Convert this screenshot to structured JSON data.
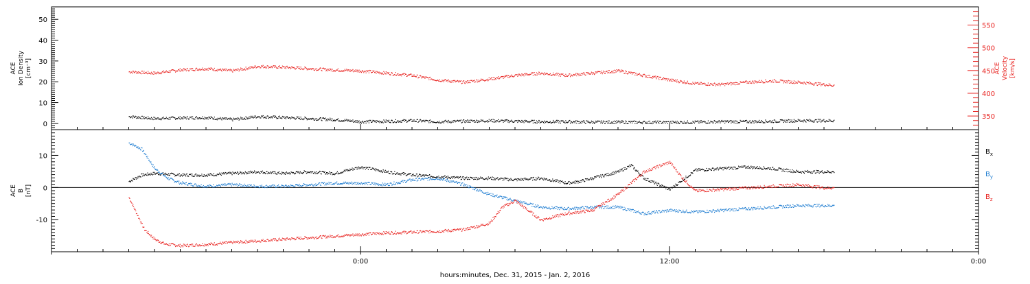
{
  "chart_data": [
    {
      "type": "scatter",
      "panel": "top",
      "ylabel_lines": [
        "ACE",
        "Ion Density",
        "[cm⁻³]"
      ],
      "ylim": [
        -3,
        56
      ],
      "yticks": [
        0,
        10,
        20,
        30,
        40,
        50
      ],
      "y2label_lines": [
        "ACE",
        "Velocity",
        "[km/s]"
      ],
      "y2lim": [
        320,
        590
      ],
      "y2ticks": [
        350,
        400,
        450,
        500,
        550
      ],
      "y2_color": "#e8221f",
      "series": [
        {
          "color": "#000000",
          "axis": "left",
          "x": [
            -9.0,
            -8.0,
            -7.0,
            -6.0,
            -5.0,
            -4.0,
            -3.0,
            -2.0,
            -1.0,
            0.0,
            1.0,
            2.0,
            3.0,
            4.0,
            5.0,
            6.0,
            7.0,
            8.0,
            9.0,
            10.0,
            11.0,
            12.0,
            13.0,
            14.0,
            15.0,
            16.0,
            17.0,
            18.0,
            18.4
          ],
          "y": [
            3.5,
            2.5,
            2.8,
            3.0,
            2.0,
            3.5,
            3.0,
            2.5,
            2.0,
            1.0,
            1.2,
            1.5,
            1.0,
            1.2,
            1.5,
            1.2,
            1.0,
            1.0,
            0.8,
            0.8,
            0.7,
            0.7,
            0.8,
            1.0,
            1.0,
            1.2,
            1.5,
            1.5,
            1.5
          ]
        },
        {
          "color": "#e8221f",
          "axis": "right",
          "x": [
            -9.0,
            -8.0,
            -7.0,
            -6.0,
            -5.0,
            -4.0,
            -3.0,
            -2.0,
            -1.0,
            0.0,
            1.0,
            2.0,
            3.0,
            4.0,
            5.0,
            6.0,
            7.0,
            8.0,
            9.0,
            10.0,
            11.0,
            12.0,
            13.0,
            14.0,
            15.0,
            16.0,
            17.0,
            18.0,
            18.4
          ],
          "y": [
            448,
            445,
            452,
            455,
            450,
            460,
            458,
            455,
            452,
            450,
            445,
            440,
            430,
            425,
            432,
            440,
            445,
            440,
            445,
            450,
            440,
            430,
            422,
            420,
            425,
            428,
            425,
            420,
            418
          ]
        }
      ]
    },
    {
      "type": "scatter",
      "panel": "bottom",
      "ylabel_lines": [
        "ACE",
        "B",
        "[nT]"
      ],
      "ylim": [
        -20,
        18
      ],
      "yticks": [
        -10,
        0,
        10
      ],
      "legend_position": "right",
      "series": [
        {
          "name": "Bx",
          "legend_main": "B",
          "legend_sub": "x",
          "color": "#000000",
          "x": [
            -9.0,
            -8.5,
            -8.0,
            -7.0,
            -6.0,
            -5.0,
            -4.0,
            -3.0,
            -2.0,
            -1.0,
            0.0,
            1.0,
            2.0,
            3.0,
            4.0,
            5.0,
            6.0,
            7.0,
            8.0,
            8.5,
            9.0,
            10.0,
            10.5,
            11.0,
            12.0,
            13.0,
            14.0,
            15.0,
            16.0,
            17.0,
            18.0,
            18.4
          ],
          "y": [
            2.0,
            4.0,
            4.5,
            4.0,
            4.0,
            4.5,
            5.0,
            4.5,
            5.0,
            4.5,
            6.5,
            5.0,
            4.0,
            3.5,
            3.0,
            3.0,
            2.5,
            3.0,
            1.5,
            2.0,
            3.0,
            5.0,
            7.0,
            3.0,
            -0.5,
            5.5,
            6.0,
            6.5,
            6.0,
            5.0,
            5.0,
            5.0
          ]
        },
        {
          "name": "By",
          "legend_main": "B",
          "legend_sub": "y",
          "color": "#1a7ad0",
          "x": [
            -9.0,
            -8.5,
            -8.0,
            -7.5,
            -7.0,
            -6.0,
            -5.0,
            -4.0,
            -3.0,
            -2.0,
            -1.0,
            0.0,
            1.0,
            2.0,
            3.0,
            4.0,
            5.0,
            6.0,
            7.0,
            8.0,
            9.0,
            10.0,
            11.0,
            12.0,
            13.0,
            14.0,
            15.0,
            16.0,
            17.0,
            18.0,
            18.4
          ],
          "y": [
            14.0,
            12.0,
            6.0,
            3.0,
            1.5,
            0.5,
            1.0,
            0.5,
            0.5,
            1.0,
            1.5,
            1.5,
            1.0,
            2.5,
            3.0,
            1.0,
            -2.0,
            -4.0,
            -6.0,
            -6.5,
            -6.0,
            -6.0,
            -8.0,
            -7.0,
            -7.5,
            -7.0,
            -6.5,
            -6.0,
            -5.5,
            -5.5,
            -5.5
          ]
        },
        {
          "name": "Bz",
          "legend_main": "B",
          "legend_sub": "z",
          "color": "#e8221f",
          "x": [
            -9.0,
            -8.7,
            -8.4,
            -8.0,
            -7.6,
            -7.0,
            -6.0,
            -5.0,
            -4.0,
            -3.0,
            -2.0,
            -1.0,
            0.0,
            1.0,
            2.0,
            3.0,
            4.0,
            5.0,
            5.5,
            6.0,
            7.0,
            8.0,
            9.0,
            10.0,
            11.0,
            12.0,
            12.5,
            13.0,
            14.0,
            15.0,
            16.0,
            17.0,
            18.0,
            18.4
          ],
          "y": [
            -3.0,
            -8.0,
            -13.0,
            -16.0,
            -17.5,
            -18.0,
            -17.6,
            -17.0,
            -16.5,
            -16.0,
            -15.5,
            -15.0,
            -14.5,
            -14.0,
            -13.8,
            -13.5,
            -13.0,
            -11.0,
            -6.0,
            -4.0,
            -10.0,
            -8.0,
            -7.0,
            -2.0,
            5.0,
            8.0,
            3.0,
            -1.0,
            -0.5,
            0.0,
            0.5,
            1.0,
            0.0,
            0.0
          ]
        }
      ]
    }
  ],
  "x_axis": {
    "xlim": [
      -12.0,
      24.0
    ],
    "major_ticks": [
      {
        "x": 0,
        "label": "0:00"
      },
      {
        "x": 12,
        "label": "12:00"
      },
      {
        "x": 24,
        "label": "0:00"
      }
    ],
    "xlabel": "hours:minutes, Dec. 31, 2015 - Jan.  2, 2016"
  },
  "reference_line": {
    "panel": "bottom",
    "y": 0
  }
}
